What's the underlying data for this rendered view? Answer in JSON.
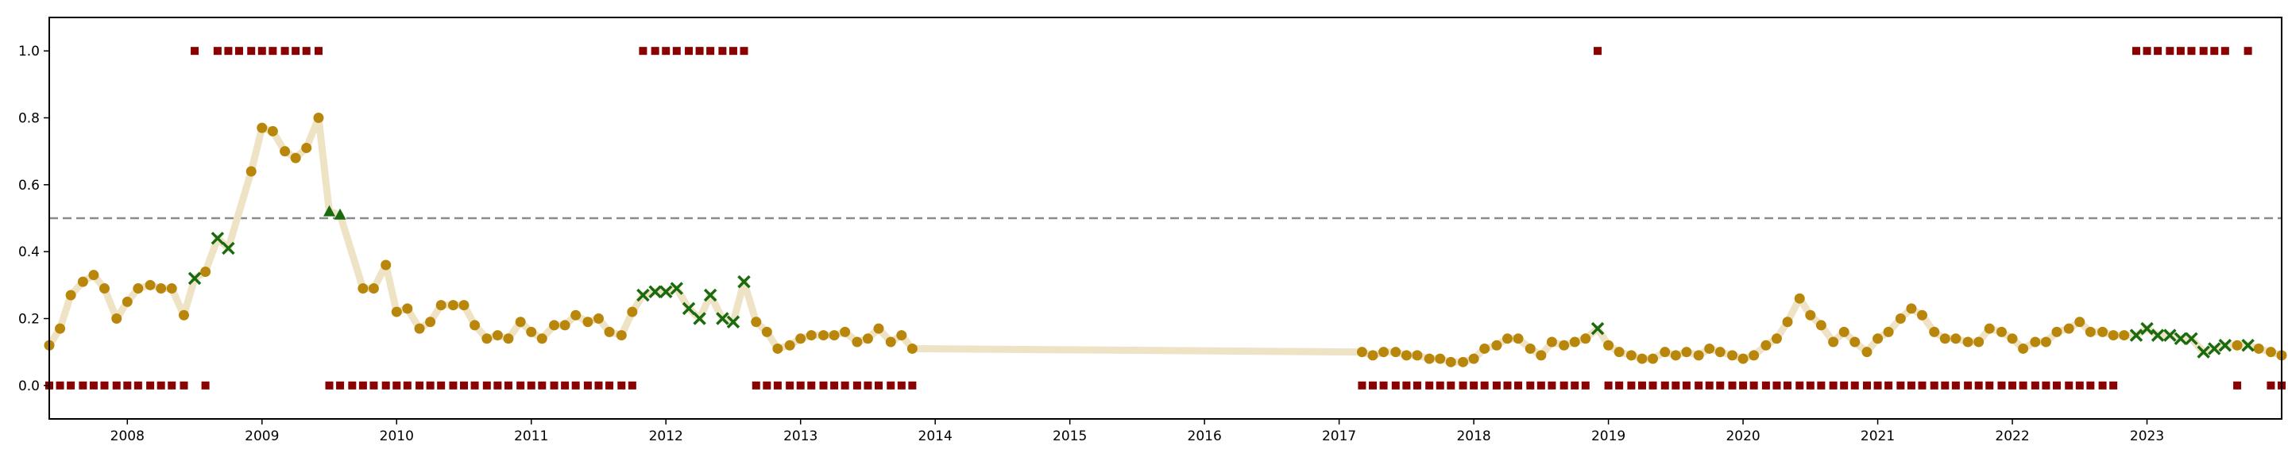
{
  "chart_data": {
    "type": "scatter",
    "title": "",
    "xlabel": "",
    "ylabel": "",
    "xlim": [
      2007.42,
      2024.0
    ],
    "ylim": [
      -0.1,
      1.1
    ],
    "grid": false,
    "threshold": 0.5,
    "x_ticks": [
      "2008",
      "2009",
      "2010",
      "2011",
      "2012",
      "2013",
      "2014",
      "2015",
      "2016",
      "2017",
      "2018",
      "2019",
      "2020",
      "2021",
      "2022",
      "2023"
    ],
    "y_ticks": [
      "0.0",
      "0.2",
      "0.4",
      "0.6",
      "0.8",
      "1.0"
    ],
    "colors": {
      "line": "#efe3c6",
      "circle": "#b8860b",
      "x": "#1a6b0f",
      "triangle": "#1a6b0f",
      "square": "#8b0000",
      "threshold": "#8a8a8a"
    },
    "series": [
      {
        "marker": "circle",
        "x": [
          2007.42,
          2007.5,
          2007.58,
          2007.67,
          2007.75,
          2007.83,
          2007.92,
          2008.0,
          2008.08,
          2008.17,
          2008.25,
          2008.33,
          2008.42,
          2008.58,
          2008.92,
          2009.0,
          2009.08,
          2009.17,
          2009.25,
          2009.33,
          2009.42,
          2009.75,
          2009.83,
          2009.92,
          2010.0,
          2010.08,
          2010.17,
          2010.25,
          2010.33,
          2010.42,
          2010.5,
          2010.58,
          2010.67,
          2010.75,
          2010.83,
          2010.92,
          2011.0,
          2011.08,
          2011.17,
          2011.25,
          2011.33,
          2011.42,
          2011.5,
          2011.58,
          2011.67,
          2011.75,
          2012.67,
          2012.75,
          2012.83,
          2012.92,
          2013.0,
          2013.08,
          2013.17,
          2013.25,
          2013.33,
          2013.42,
          2013.5,
          2013.58,
          2013.67,
          2013.75,
          2013.83,
          2017.17,
          2017.25,
          2017.33,
          2017.42,
          2017.5,
          2017.58,
          2017.67,
          2017.75,
          2017.83,
          2017.92,
          2018.0,
          2018.08,
          2018.17,
          2018.25,
          2018.33,
          2018.42,
          2018.5,
          2018.58,
          2018.67,
          2018.75,
          2018.83,
          2019.0,
          2019.08,
          2019.17,
          2019.25,
          2019.33,
          2019.42,
          2019.5,
          2019.58,
          2019.67,
          2019.75,
          2019.83,
          2019.92,
          2020.0,
          2020.08,
          2020.17,
          2020.25,
          2020.33,
          2020.42,
          2020.5,
          2020.58,
          2020.67,
          2020.75,
          2020.83,
          2020.92,
          2021.0,
          2021.08,
          2021.17,
          2021.25,
          2021.33,
          2021.42,
          2021.5,
          2021.58,
          2021.67,
          2021.75,
          2021.83,
          2021.92,
          2022.0,
          2022.08,
          2022.17,
          2022.25,
          2022.33,
          2022.42,
          2022.5,
          2022.58,
          2022.67,
          2022.75,
          2022.83,
          2023.67,
          2023.83,
          2023.92,
          2024.0
        ],
        "y": [
          0.12,
          0.17,
          0.27,
          0.31,
          0.33,
          0.29,
          0.2,
          0.25,
          0.29,
          0.3,
          0.29,
          0.29,
          0.21,
          0.34,
          0.64,
          0.77,
          0.76,
          0.7,
          0.68,
          0.71,
          0.8,
          0.29,
          0.29,
          0.36,
          0.22,
          0.23,
          0.17,
          0.19,
          0.24,
          0.24,
          0.24,
          0.18,
          0.14,
          0.15,
          0.14,
          0.19,
          0.16,
          0.14,
          0.18,
          0.18,
          0.21,
          0.19,
          0.2,
          0.16,
          0.15,
          0.22,
          0.19,
          0.16,
          0.11,
          0.12,
          0.14,
          0.15,
          0.15,
          0.15,
          0.16,
          0.13,
          0.14,
          0.17,
          0.13,
          0.15,
          0.11,
          0.1,
          0.09,
          0.1,
          0.1,
          0.09,
          0.09,
          0.08,
          0.08,
          0.07,
          0.07,
          0.08,
          0.11,
          0.12,
          0.14,
          0.14,
          0.11,
          0.09,
          0.13,
          0.12,
          0.13,
          0.14,
          0.12,
          0.1,
          0.09,
          0.08,
          0.08,
          0.1,
          0.09,
          0.1,
          0.09,
          0.11,
          0.1,
          0.09,
          0.08,
          0.09,
          0.12,
          0.14,
          0.19,
          0.26,
          0.21,
          0.18,
          0.13,
          0.16,
          0.13,
          0.1,
          0.14,
          0.16,
          0.2,
          0.23,
          0.21,
          0.16,
          0.14,
          0.14,
          0.13,
          0.13,
          0.17,
          0.16,
          0.14,
          0.11,
          0.13,
          0.13,
          0.16,
          0.17,
          0.19,
          0.16,
          0.16,
          0.15,
          0.15,
          0.12,
          0.11,
          0.1,
          0.09
        ]
      },
      {
        "marker": "x",
        "x": [
          2008.5,
          2008.67,
          2008.75,
          2011.83,
          2011.92,
          2012.0,
          2012.08,
          2012.17,
          2012.25,
          2012.33,
          2012.42,
          2012.5,
          2012.58,
          2018.92,
          2022.92,
          2023.0,
          2023.08,
          2023.17,
          2023.25,
          2023.33,
          2023.42,
          2023.5,
          2023.58,
          2023.75
        ],
        "y": [
          0.32,
          0.44,
          0.41,
          0.27,
          0.28,
          0.28,
          0.29,
          0.23,
          0.2,
          0.27,
          0.2,
          0.19,
          0.31,
          0.17,
          0.15,
          0.17,
          0.15,
          0.15,
          0.14,
          0.14,
          0.1,
          0.11,
          0.12,
          0.12
        ]
      },
      {
        "marker": "triangle",
        "x": [
          2009.5,
          2009.58
        ],
        "y": [
          0.52,
          0.51
        ]
      },
      {
        "marker": "square",
        "x": [
          2007.42,
          2007.5,
          2007.58,
          2007.67,
          2007.75,
          2007.83,
          2007.92,
          2008.0,
          2008.08,
          2008.17,
          2008.25,
          2008.33,
          2008.42,
          2008.5,
          2008.58,
          2008.67,
          2008.75,
          2008.83,
          2008.92,
          2009.0,
          2009.08,
          2009.17,
          2009.25,
          2009.33,
          2009.42,
          2009.5,
          2009.58,
          2009.67,
          2009.75,
          2009.83,
          2009.92,
          2010.0,
          2010.08,
          2010.17,
          2010.25,
          2010.33,
          2010.42,
          2010.5,
          2010.58,
          2010.67,
          2010.75,
          2010.83,
          2010.92,
          2011.0,
          2011.08,
          2011.17,
          2011.25,
          2011.33,
          2011.42,
          2011.5,
          2011.58,
          2011.67,
          2011.75,
          2011.83,
          2011.92,
          2012.0,
          2012.08,
          2012.17,
          2012.25,
          2012.33,
          2012.42,
          2012.5,
          2012.58,
          2012.67,
          2012.75,
          2012.83,
          2012.92,
          2013.0,
          2013.08,
          2013.17,
          2013.25,
          2013.33,
          2013.42,
          2013.5,
          2013.58,
          2013.67,
          2013.75,
          2013.83,
          2017.17,
          2017.25,
          2017.33,
          2017.42,
          2017.5,
          2017.58,
          2017.67,
          2017.75,
          2017.83,
          2017.92,
          2018.0,
          2018.08,
          2018.17,
          2018.25,
          2018.33,
          2018.42,
          2018.5,
          2018.58,
          2018.67,
          2018.75,
          2018.83,
          2018.92,
          2019.0,
          2019.08,
          2019.17,
          2019.25,
          2019.33,
          2019.42,
          2019.5,
          2019.58,
          2019.67,
          2019.75,
          2019.83,
          2019.92,
          2020.0,
          2020.08,
          2020.17,
          2020.25,
          2020.33,
          2020.42,
          2020.5,
          2020.58,
          2020.67,
          2020.75,
          2020.83,
          2020.92,
          2021.0,
          2021.08,
          2021.17,
          2021.25,
          2021.33,
          2021.42,
          2021.5,
          2021.58,
          2021.67,
          2021.75,
          2021.83,
          2021.92,
          2022.0,
          2022.08,
          2022.17,
          2022.25,
          2022.33,
          2022.42,
          2022.5,
          2022.58,
          2022.67,
          2022.75,
          2022.92,
          2023.0,
          2023.08,
          2023.17,
          2023.25,
          2023.33,
          2023.42,
          2023.5,
          2023.58,
          2023.67,
          2023.75,
          2023.92,
          2024.0
        ],
        "y": [
          0,
          0,
          0,
          0,
          0,
          0,
          0,
          0,
          0,
          0,
          0,
          0,
          0,
          1,
          0,
          1,
          1,
          1,
          1,
          1,
          1,
          1,
          1,
          1,
          1,
          0,
          0,
          0,
          0,
          0,
          0,
          0,
          0,
          0,
          0,
          0,
          0,
          0,
          0,
          0,
          0,
          0,
          0,
          0,
          0,
          0,
          0,
          0,
          0,
          0,
          0,
          0,
          0,
          1,
          1,
          1,
          1,
          1,
          1,
          1,
          1,
          1,
          1,
          0,
          0,
          0,
          0,
          0,
          0,
          0,
          0,
          0,
          0,
          0,
          0,
          0,
          0,
          0,
          0,
          0,
          0,
          0,
          0,
          0,
          0,
          0,
          0,
          0,
          0,
          0,
          0,
          0,
          0,
          0,
          0,
          0,
          0,
          0,
          0,
          1,
          0,
          0,
          0,
          0,
          0,
          0,
          0,
          0,
          0,
          0,
          0,
          0,
          0,
          0,
          0,
          0,
          0,
          0,
          0,
          0,
          0,
          0,
          0,
          0,
          0,
          0,
          0,
          0,
          0,
          0,
          0,
          0,
          0,
          0,
          0,
          0,
          0,
          0,
          0,
          0,
          0,
          0,
          0,
          0,
          0,
          0,
          1,
          1,
          1,
          1,
          1,
          1,
          1,
          1,
          1,
          0,
          1,
          0,
          0
        ]
      }
    ]
  }
}
